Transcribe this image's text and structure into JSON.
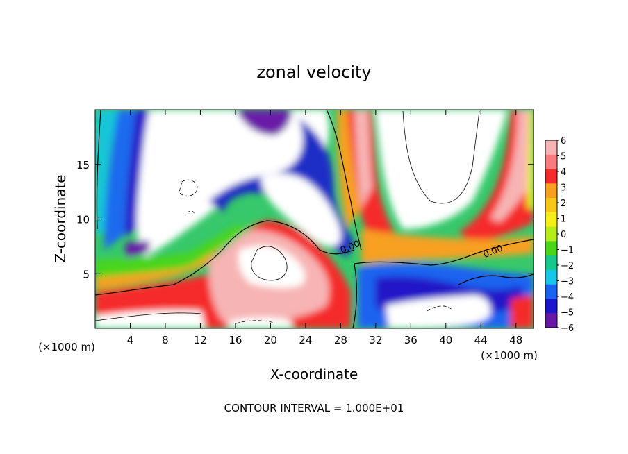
{
  "chart_data": {
    "type": "heatmap",
    "title": "zonal velocity",
    "xlabel": "X-coordinate",
    "ylabel": "Z-coordinate",
    "x_unit_label": "(×1000 m)",
    "x_unit_label_right": "(×1000 m)",
    "xlim": [
      0,
      50
    ],
    "ylim": [
      0,
      20
    ],
    "x_ticks": [
      4,
      8,
      12,
      16,
      20,
      24,
      28,
      32,
      36,
      40,
      44,
      48
    ],
    "y_ticks": [
      5,
      10,
      15
    ],
    "footer": "CONTOUR INTERVAL = 1.000E+01",
    "contour_labels": [
      {
        "text": "0.00",
        "x": 29.2,
        "y": 7.2
      },
      {
        "text": "0.00",
        "x": 45.5,
        "y": 6.8
      }
    ],
    "colorbar": {
      "levels": [
        6,
        5,
        4,
        3,
        2,
        1,
        0,
        -1,
        -2,
        -3,
        -4,
        -5,
        -6
      ],
      "colors": [
        "#f7b4b4",
        "#f87c7c",
        "#f52a2a",
        "#f7a020",
        "#f6c818",
        "#f4ef18",
        "#b6ec1a",
        "#4ad51a",
        "#16c88c",
        "#18c6e8",
        "#1a64f0",
        "#1c16cc",
        "#6818a4"
      ]
    }
  }
}
